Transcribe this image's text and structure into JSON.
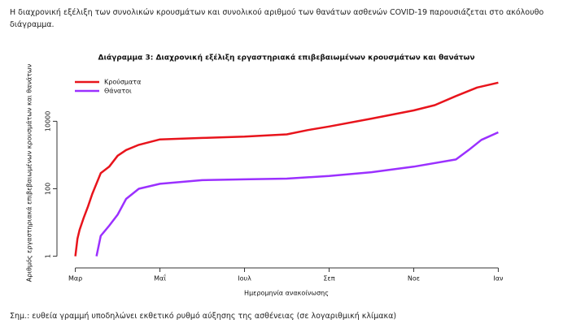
{
  "intro": "Η διαχρονική εξέλιξη των συνολικών κρουσμάτων και συνολικού αριθμού των θανάτων ασθενών COVID-19 παρουσιάζεται στο ακόλουθο διάγραμμα.",
  "note": "Σημ.: ευθεία γραμμή υποδηλώνει εκθετικό ρυθμό αύξησης της ασθένειας (σε λογαριθμική κλίμακα)",
  "chart_data": {
    "type": "line",
    "title": "Διάγραμμα 3: Διαχρονική εξέλιξη εργαστηριακά επιβεβαιωμένων κρουσμάτων και θανάτων",
    "x_label": "Ημερομηνία ανακοίνωσης",
    "y_label": "Αριθμός εργαστηριακά επιβεβαιωμένων κρουσμάτων και θανάτων",
    "log_y": true,
    "legend": "top-left",
    "xlim": [
      -0.3,
      10.3
    ],
    "xticks": [
      {
        "value": 0,
        "label": "Μαρ"
      },
      {
        "value": 2,
        "label": "Μαΐ"
      },
      {
        "value": 4,
        "label": "Ιουλ"
      },
      {
        "value": 6,
        "label": "Σεπ"
      },
      {
        "value": 8,
        "label": "Νοε"
      },
      {
        "value": 10,
        "label": "Ιαν"
      }
    ],
    "ylim": [
      0.7,
      300000
    ],
    "yticks": [
      1,
      100,
      10000
    ],
    "series": [
      {
        "name": "Κρούσματα",
        "color": "#e8141c",
        "x": [
          0,
          0.05,
          0.1,
          0.2,
          0.3,
          0.4,
          0.6,
          0.8,
          1.0,
          1.2,
          1.5,
          2,
          3,
          4,
          5,
          5.5,
          6,
          7,
          8,
          8.5,
          9,
          9.5,
          10
        ],
        "values": [
          1,
          3.3,
          6,
          14,
          30,
          70,
          290,
          450,
          950,
          1400,
          2000,
          2900,
          3200,
          3500,
          4100,
          5500,
          7000,
          12000,
          21000,
          30000,
          56000,
          100000,
          140000
        ]
      },
      {
        "name": "Θάνατοι",
        "color": "#9b30ff",
        "x": [
          0.5,
          0.6,
          0.8,
          1.0,
          1.2,
          1.5,
          2,
          3,
          4,
          5,
          6,
          7,
          8,
          9,
          9.3,
          9.6,
          10
        ],
        "values": [
          1,
          4,
          8,
          17,
          50,
          100,
          140,
          180,
          190,
          200,
          240,
          310,
          450,
          740,
          1400,
          2800,
          4700
        ]
      }
    ]
  }
}
